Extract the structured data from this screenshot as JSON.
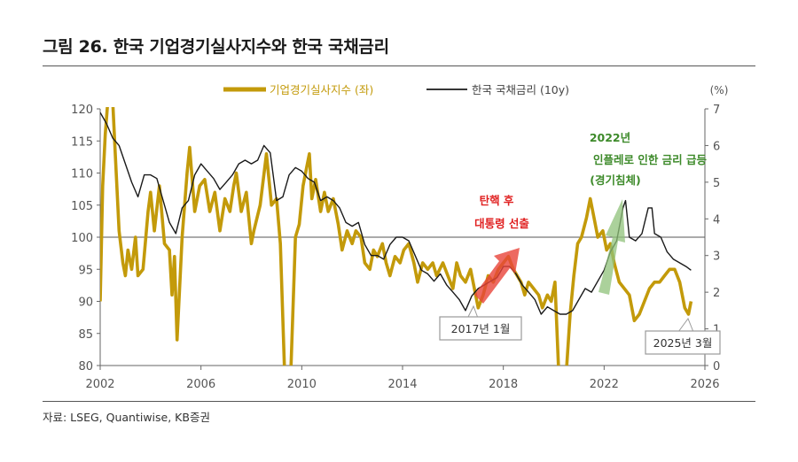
{
  "figure": {
    "title": "그림 26. 한국 기업경기실사지수와 한국 국채금리",
    "source": "자료: LSEG, Quantiwise, KB증권"
  },
  "colors": {
    "bsi": "#c39a0a",
    "yield": "#1a1a1a",
    "red_arrow": "#e8443a",
    "green_arrow": "#8fc27a",
    "red_text": "#e02020",
    "green_text": "#3d8a2a",
    "callout_border": "#9a9a9a"
  },
  "annotations": {
    "impeachment": [
      "탄핵 후",
      "대통령 선출"
    ],
    "inflation": [
      "2022년",
      "인플레로 인한 금리 급등",
      "(경기침체)"
    ],
    "callout_2017": "2017년 1월",
    "callout_2025": "2025년 3월"
  },
  "chart_data": {
    "type": "line",
    "legend_placement": "top",
    "x_ticks": [
      "2002",
      "2006",
      "2010",
      "2014",
      "2018",
      "2022",
      "2026"
    ],
    "xlim": [
      2002,
      2026
    ],
    "y_left": {
      "ylim": [
        80,
        120
      ],
      "ticks": [
        "80",
        "85",
        "90",
        "95",
        "100",
        "105",
        "110",
        "115",
        "120"
      ],
      "reference_line": 100
    },
    "y_right": {
      "unit_label": "(%)",
      "ylim": [
        0,
        7
      ],
      "ticks": [
        "0",
        "1",
        "2",
        "3",
        "4",
        "5",
        "6",
        "7"
      ]
    },
    "series": [
      {
        "name": "기업경기실사지수 (좌)",
        "axis": "left",
        "points": [
          [
            2002.0,
            90
          ],
          [
            2002.1,
            108
          ],
          [
            2002.2,
            116
          ],
          [
            2002.3,
            121
          ],
          [
            2002.5,
            121
          ],
          [
            2002.6,
            113
          ],
          [
            2002.75,
            101
          ],
          [
            2002.9,
            96
          ],
          [
            2003.0,
            94
          ],
          [
            2003.1,
            98
          ],
          [
            2003.25,
            95
          ],
          [
            2003.4,
            100
          ],
          [
            2003.5,
            94
          ],
          [
            2003.7,
            95
          ],
          [
            2003.9,
            104
          ],
          [
            2004.0,
            107
          ],
          [
            2004.15,
            101
          ],
          [
            2004.35,
            108
          ],
          [
            2004.55,
            99
          ],
          [
            2004.75,
            98
          ],
          [
            2004.85,
            91
          ],
          [
            2004.95,
            97
          ],
          [
            2005.05,
            84
          ],
          [
            2005.25,
            100
          ],
          [
            2005.45,
            110
          ],
          [
            2005.55,
            114
          ],
          [
            2005.75,
            104
          ],
          [
            2005.95,
            108
          ],
          [
            2006.15,
            109
          ],
          [
            2006.35,
            104
          ],
          [
            2006.55,
            107
          ],
          [
            2006.75,
            101
          ],
          [
            2006.95,
            106
          ],
          [
            2007.15,
            104
          ],
          [
            2007.3,
            108
          ],
          [
            2007.4,
            110
          ],
          [
            2007.6,
            104
          ],
          [
            2007.8,
            107
          ],
          [
            2008.0,
            99
          ],
          [
            2008.1,
            101
          ],
          [
            2008.35,
            105
          ],
          [
            2008.6,
            113
          ],
          [
            2008.8,
            105
          ],
          [
            2009.0,
            106
          ],
          [
            2009.15,
            99
          ],
          [
            2009.35,
            75
          ],
          [
            2009.55,
            77
          ],
          [
            2009.75,
            100
          ],
          [
            2009.9,
            102
          ],
          [
            2010.05,
            108
          ],
          [
            2010.2,
            111
          ],
          [
            2010.3,
            113
          ],
          [
            2010.4,
            106
          ],
          [
            2010.55,
            109
          ],
          [
            2010.75,
            104
          ],
          [
            2010.9,
            107
          ],
          [
            2011.05,
            104
          ],
          [
            2011.25,
            106
          ],
          [
            2011.45,
            102
          ],
          [
            2011.6,
            98
          ],
          [
            2011.8,
            101
          ],
          [
            2012.0,
            99
          ],
          [
            2012.15,
            101
          ],
          [
            2012.35,
            100
          ],
          [
            2012.5,
            96
          ],
          [
            2012.7,
            95
          ],
          [
            2012.85,
            98
          ],
          [
            2013.0,
            97
          ],
          [
            2013.2,
            99
          ],
          [
            2013.35,
            96
          ],
          [
            2013.5,
            94
          ],
          [
            2013.7,
            97
          ],
          [
            2013.9,
            96
          ],
          [
            2014.05,
            98
          ],
          [
            2014.25,
            99
          ],
          [
            2014.45,
            96
          ],
          [
            2014.6,
            93
          ],
          [
            2014.8,
            96
          ],
          [
            2015.0,
            95
          ],
          [
            2015.2,
            96
          ],
          [
            2015.35,
            94
          ],
          [
            2015.6,
            96
          ],
          [
            2015.8,
            94
          ],
          [
            2016.0,
            92
          ],
          [
            2016.15,
            96
          ],
          [
            2016.3,
            94
          ],
          [
            2016.5,
            93
          ],
          [
            2016.7,
            95
          ],
          [
            2016.85,
            92
          ],
          [
            2017.0,
            89
          ],
          [
            2017.2,
            91
          ],
          [
            2017.4,
            94
          ],
          [
            2017.6,
            93
          ],
          [
            2017.8,
            95
          ],
          [
            2018.0,
            96
          ],
          [
            2018.2,
            97
          ],
          [
            2018.4,
            95
          ],
          [
            2018.55,
            94
          ],
          [
            2018.7,
            93
          ],
          [
            2018.85,
            91
          ],
          [
            2019.0,
            93
          ],
          [
            2019.2,
            92
          ],
          [
            2019.4,
            91
          ],
          [
            2019.55,
            89
          ],
          [
            2019.75,
            91
          ],
          [
            2019.9,
            90
          ],
          [
            2020.05,
            93
          ],
          [
            2020.25,
            74
          ],
          [
            2020.45,
            76
          ],
          [
            2020.65,
            88
          ],
          [
            2020.8,
            94
          ],
          [
            2020.95,
            99
          ],
          [
            2021.1,
            100
          ],
          [
            2021.3,
            103
          ],
          [
            2021.45,
            106
          ],
          [
            2021.6,
            103
          ],
          [
            2021.75,
            100
          ],
          [
            2021.95,
            101
          ],
          [
            2022.1,
            98
          ],
          [
            2022.25,
            99
          ],
          [
            2022.4,
            96
          ],
          [
            2022.6,
            93
          ],
          [
            2022.8,
            92
          ],
          [
            2023.0,
            91
          ],
          [
            2023.2,
            87
          ],
          [
            2023.4,
            88
          ],
          [
            2023.6,
            90
          ],
          [
            2023.8,
            92
          ],
          [
            2024.0,
            93
          ],
          [
            2024.2,
            93
          ],
          [
            2024.4,
            94
          ],
          [
            2024.6,
            95
          ],
          [
            2024.8,
            95
          ],
          [
            2025.0,
            93
          ],
          [
            2025.2,
            89
          ],
          [
            2025.35,
            88
          ],
          [
            2025.45,
            90
          ]
        ]
      },
      {
        "name": "한국 국채금리 (10y)",
        "axis": "right",
        "points": [
          [
            2002.0,
            6.9
          ],
          [
            2002.25,
            6.6
          ],
          [
            2002.5,
            6.2
          ],
          [
            2002.75,
            6.0
          ],
          [
            2003.0,
            5.5
          ],
          [
            2003.25,
            5.0
          ],
          [
            2003.5,
            4.6
          ],
          [
            2003.75,
            5.2
          ],
          [
            2004.0,
            5.2
          ],
          [
            2004.25,
            5.1
          ],
          [
            2004.5,
            4.5
          ],
          [
            2004.75,
            3.9
          ],
          [
            2005.0,
            3.6
          ],
          [
            2005.25,
            4.3
          ],
          [
            2005.5,
            4.5
          ],
          [
            2005.75,
            5.2
          ],
          [
            2006.0,
            5.5
          ],
          [
            2006.25,
            5.3
          ],
          [
            2006.5,
            5.1
          ],
          [
            2006.75,
            4.8
          ],
          [
            2007.0,
            5.0
          ],
          [
            2007.25,
            5.2
          ],
          [
            2007.5,
            5.5
          ],
          [
            2007.75,
            5.6
          ],
          [
            2008.0,
            5.5
          ],
          [
            2008.25,
            5.6
          ],
          [
            2008.5,
            6.0
          ],
          [
            2008.75,
            5.8
          ],
          [
            2009.0,
            4.5
          ],
          [
            2009.25,
            4.6
          ],
          [
            2009.5,
            5.2
          ],
          [
            2009.75,
            5.4
          ],
          [
            2010.0,
            5.3
          ],
          [
            2010.25,
            5.1
          ],
          [
            2010.5,
            5.0
          ],
          [
            2010.75,
            4.5
          ],
          [
            2011.0,
            4.6
          ],
          [
            2011.25,
            4.5
          ],
          [
            2011.5,
            4.3
          ],
          [
            2011.75,
            3.9
          ],
          [
            2012.0,
            3.8
          ],
          [
            2012.25,
            3.9
          ],
          [
            2012.5,
            3.3
          ],
          [
            2012.75,
            3.0
          ],
          [
            2013.0,
            3.0
          ],
          [
            2013.25,
            2.9
          ],
          [
            2013.5,
            3.3
          ],
          [
            2013.75,
            3.5
          ],
          [
            2014.0,
            3.5
          ],
          [
            2014.25,
            3.4
          ],
          [
            2014.5,
            3.0
          ],
          [
            2014.75,
            2.6
          ],
          [
            2015.0,
            2.5
          ],
          [
            2015.25,
            2.3
          ],
          [
            2015.5,
            2.5
          ],
          [
            2015.75,
            2.2
          ],
          [
            2016.0,
            2.0
          ],
          [
            2016.25,
            1.8
          ],
          [
            2016.5,
            1.5
          ],
          [
            2016.75,
            1.9
          ],
          [
            2017.0,
            2.1
          ],
          [
            2017.25,
            2.2
          ],
          [
            2017.5,
            2.3
          ],
          [
            2017.75,
            2.4
          ],
          [
            2018.0,
            2.7
          ],
          [
            2018.25,
            2.7
          ],
          [
            2018.5,
            2.5
          ],
          [
            2018.75,
            2.2
          ],
          [
            2019.0,
            2.0
          ],
          [
            2019.25,
            1.8
          ],
          [
            2019.5,
            1.4
          ],
          [
            2019.75,
            1.6
          ],
          [
            2020.0,
            1.5
          ],
          [
            2020.25,
            1.4
          ],
          [
            2020.5,
            1.4
          ],
          [
            2020.75,
            1.5
          ],
          [
            2021.0,
            1.8
          ],
          [
            2021.25,
            2.1
          ],
          [
            2021.5,
            2.0
          ],
          [
            2021.75,
            2.3
          ],
          [
            2022.0,
            2.6
          ],
          [
            2022.25,
            3.1
          ],
          [
            2022.5,
            3.4
          ],
          [
            2022.75,
            4.3
          ],
          [
            2022.85,
            4.5
          ],
          [
            2023.0,
            3.5
          ],
          [
            2023.25,
            3.4
          ],
          [
            2023.5,
            3.6
          ],
          [
            2023.75,
            4.3
          ],
          [
            2023.9,
            4.3
          ],
          [
            2024.0,
            3.6
          ],
          [
            2024.25,
            3.5
          ],
          [
            2024.5,
            3.1
          ],
          [
            2024.75,
            2.9
          ],
          [
            2025.0,
            2.8
          ],
          [
            2025.25,
            2.7
          ],
          [
            2025.45,
            2.6
          ]
        ]
      }
    ]
  }
}
